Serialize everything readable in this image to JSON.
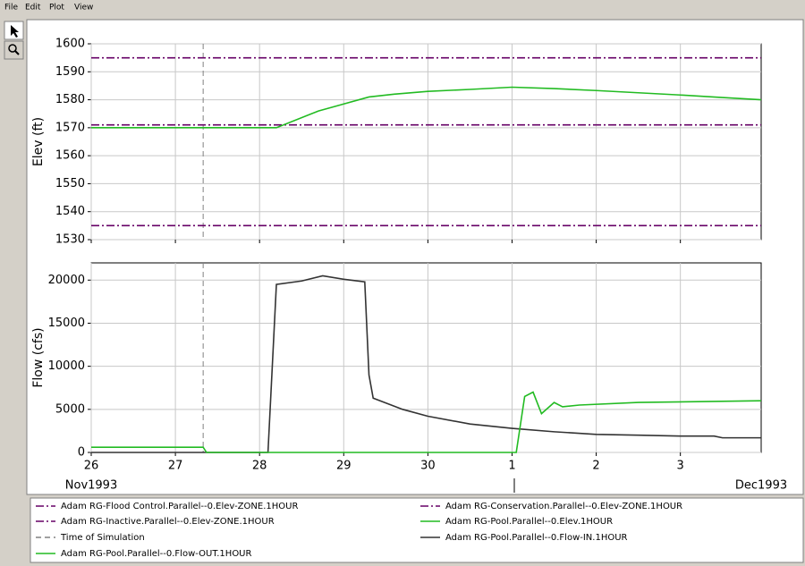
{
  "menu": [
    "File",
    "Edit",
    "Plot",
    "View"
  ],
  "chart_data": [
    {
      "type": "line",
      "ylabel": "Elev (ft)",
      "xlim": [
        26,
        33.96
      ],
      "ylim": [
        1530,
        1600
      ],
      "yticks": [
        1530,
        1540,
        1550,
        1560,
        1570,
        1580,
        1590,
        1600
      ],
      "xticks": [
        26,
        27,
        28,
        29,
        30,
        {
          "value": 31,
          "label": "1"
        },
        {
          "value": 32,
          "label": "2"
        },
        {
          "value": 33,
          "label": "3"
        }
      ],
      "grid": true,
      "vline": {
        "name": "Time of Simulation",
        "x": 27.33,
        "color": "#808080",
        "style": "dashed"
      },
      "series": [
        {
          "name": "Adam RG-Flood Control.Parallel--0.Elev-ZONE.1HOUR",
          "color": "#660066",
          "style": "dashdot",
          "x": [
            26,
            33.96
          ],
          "values": [
            1595,
            1595
          ]
        },
        {
          "name": "Adam RG-Conservation.Parallel--0.Elev-ZONE.1HOUR",
          "color": "#660066",
          "style": "dashdot",
          "x": [
            26,
            33.96
          ],
          "values": [
            1571,
            1571
          ]
        },
        {
          "name": "Adam RG-Inactive.Parallel--0.Elev-ZONE.1HOUR",
          "color": "#660066",
          "style": "dashdot",
          "x": [
            26,
            33.96
          ],
          "values": [
            1535,
            1535
          ]
        },
        {
          "name": "Adam RG-Pool.Parallel--0.Elev.1HOUR",
          "color": "#22bb22",
          "style": "solid",
          "x": [
            26,
            28.2,
            28.7,
            29.3,
            29.6,
            30,
            30.5,
            31,
            31.5,
            32,
            32.5,
            33,
            33.5,
            33.96
          ],
          "values": [
            1570,
            1570,
            1576,
            1581,
            1582,
            1583,
            1583.7,
            1584.5,
            1584,
            1583.3,
            1582.5,
            1581.7,
            1580.8,
            1580
          ]
        }
      ]
    },
    {
      "type": "line",
      "ylabel": "Flow (cfs)",
      "xlim": [
        26,
        33.96
      ],
      "ylim": [
        0,
        22000
      ],
      "yticks": [
        0,
        5000,
        10000,
        15000,
        20000
      ],
      "xticks": [
        26,
        27,
        28,
        29,
        30,
        {
          "value": 31,
          "label": "1"
        },
        {
          "value": 32,
          "label": "2"
        },
        {
          "value": 33,
          "label": "3"
        }
      ],
      "x_period_labels": [
        "Nov1993",
        "Dec1993"
      ],
      "grid": true,
      "series": [
        {
          "name": "Adam RG-Pool.Parallel--0.Flow-IN.1HOUR",
          "color": "#333333",
          "style": "solid",
          "x": [
            26,
            28.1,
            28.2,
            28.5,
            28.75,
            29,
            29.25,
            29.3,
            29.35,
            29.7,
            30,
            30.5,
            31,
            31.5,
            32,
            32.5,
            33,
            33.4,
            33.5,
            33.96
          ],
          "values": [
            0,
            0,
            19500,
            19900,
            20500,
            20100,
            19800,
            9000,
            6300,
            5000,
            4200,
            3300,
            2800,
            2400,
            2100,
            2000,
            1900,
            1900,
            1700,
            1700
          ]
        },
        {
          "name": "Adam RG-Pool.Parallel--0.Flow-OUT.1HOUR",
          "color": "#22bb22",
          "style": "solid",
          "x": [
            26,
            27.33,
            27.37,
            31.05,
            31.15,
            31.25,
            31.35,
            31.5,
            31.6,
            31.8,
            32.5,
            33.96
          ],
          "values": [
            600,
            600,
            0,
            0,
            6500,
            7000,
            4500,
            5800,
            5300,
            5500,
            5800,
            6000
          ]
        }
      ]
    }
  ]
}
